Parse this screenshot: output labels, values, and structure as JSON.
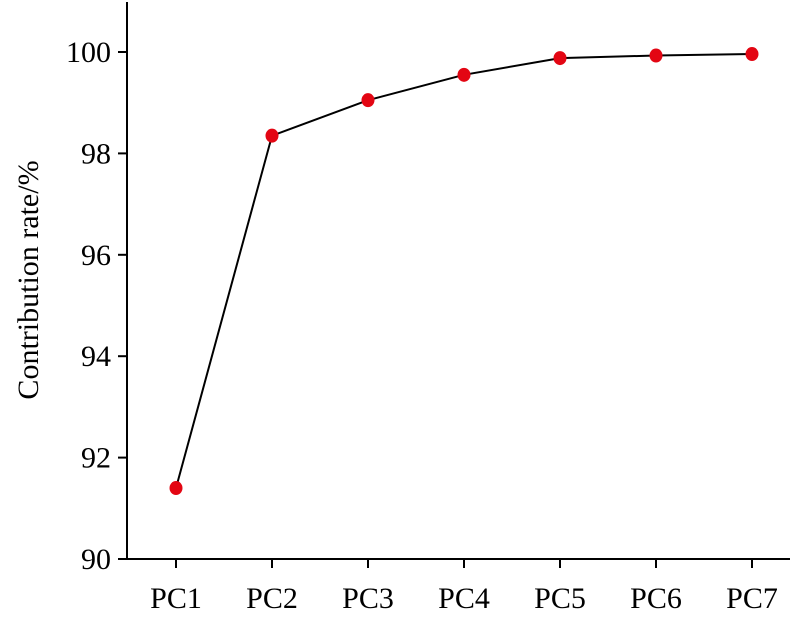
{
  "chart_data": {
    "type": "line",
    "categories": [
      "PC1",
      "PC2",
      "PC3",
      "PC4",
      "PC5",
      "PC6",
      "PC7"
    ],
    "series": [
      {
        "values": [
          91.4,
          98.35,
          99.05,
          99.55,
          99.88,
          99.93,
          99.96
        ],
        "line_color": "#000000",
        "marker_color": "#e30613"
      }
    ],
    "xlabel": "",
    "ylabel": "Contribution rate/%",
    "ylim": [
      90,
      101
    ],
    "yticks": [
      90,
      92,
      94,
      96,
      98,
      100
    ],
    "grid": false
  }
}
